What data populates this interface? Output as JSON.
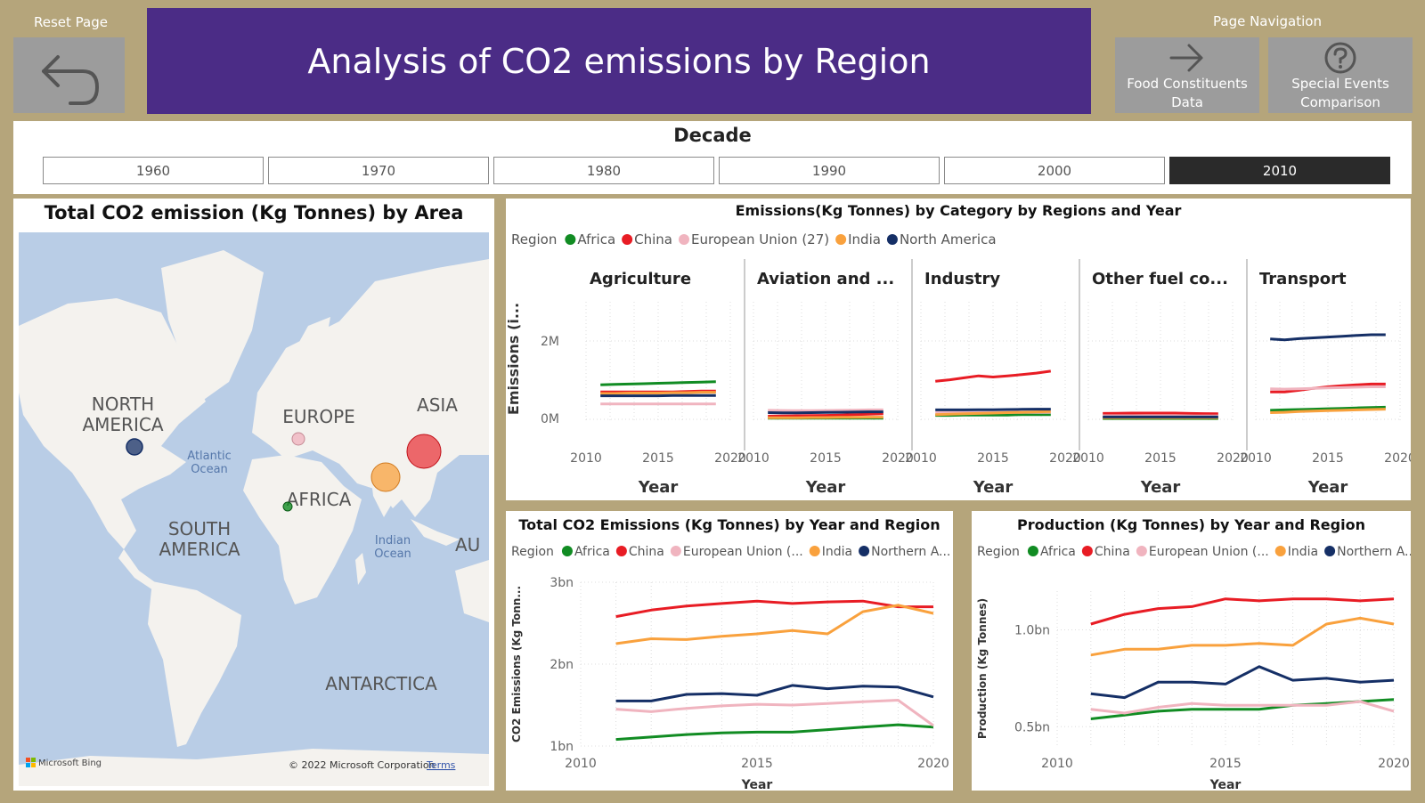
{
  "header": {
    "reset_label": "Reset Page",
    "title": "Analysis of CO2 emissions by Region",
    "nav_label": "Page Navigation",
    "nav_buttons": [
      {
        "line1": "Food Constituents",
        "line2": "Data",
        "icon": "arrow-right-icon"
      },
      {
        "line1": "Special Events",
        "line2": "Comparison",
        "icon": "help-icon"
      }
    ]
  },
  "decade": {
    "title": "Decade",
    "options": [
      "1960",
      "1970",
      "1980",
      "1990",
      "2000",
      "2010"
    ],
    "selected": "2010"
  },
  "map": {
    "title": "Total CO2 emission (Kg Tonnes) by Area",
    "labels": {
      "north_america_1": "NORTH",
      "north_america_2": "AMERICA",
      "europe": "EUROPE",
      "asia": "ASIA",
      "africa": "AFRICA",
      "south_america_1": "SOUTH",
      "south_america_2": "AMERICA",
      "atlantic_1": "Atlantic",
      "atlantic_2": "Ocean",
      "indian_1": "Indian",
      "indian_2": "Ocean",
      "australia_partial": "AU",
      "antarctica": "ANTARCTICA"
    },
    "bing": "Microsoft Bing",
    "copyright": "© 2022 Microsoft Corporation",
    "terms": "Terms",
    "colors": {
      "water": "#b9cde6",
      "land": "#f4f2ee"
    }
  },
  "colors": {
    "Africa": "#118c23",
    "China": "#e81c24",
    "European Union": "#f0b4bf",
    "India": "#f9a13d",
    "North America": "#152f66"
  },
  "category_chart": {
    "title": "Emissions(Kg Tonnes) by Category by Regions and Year",
    "legend_title": "Region",
    "legend": [
      "Africa",
      "China",
      "European Union (27)",
      "India",
      "North America"
    ],
    "y_label": "Emissions (i...",
    "y_ticks": [
      "2M",
      "0M"
    ],
    "x_ticks": [
      "2010",
      "2015",
      "2020"
    ],
    "x_label": "Year",
    "panels": [
      "Agriculture",
      "Aviation and ...",
      "Industry",
      "Other fuel co...",
      "Transport"
    ]
  },
  "total_chart": {
    "title": "Total CO2 Emissions (Kg Tonnes) by Year and Region",
    "legend_title": "Region",
    "legend": [
      "Africa",
      "China",
      "European Union (...",
      "India",
      "Northern A..."
    ],
    "y_label": "CO2 Emissions (Kg Tonn...",
    "y_ticks": [
      "3bn",
      "2bn",
      "1bn"
    ],
    "x_ticks": [
      "2010",
      "2015",
      "2020"
    ],
    "x_label": "Year"
  },
  "production_chart": {
    "title": "Production (Kg Tonnes) by Year and Region",
    "legend_title": "Region",
    "legend": [
      "Africa",
      "China",
      "European Union (...",
      "India",
      "Northern A..."
    ],
    "y_label": "Production (Kg Tonnes)",
    "y_ticks": [
      "1.0bn",
      "0.5bn"
    ],
    "x_ticks": [
      "2010",
      "2015",
      "2020"
    ],
    "x_label": "Year"
  },
  "chart_data": [
    {
      "type": "line",
      "title": "Emissions(Kg Tonnes) by Category by Regions and Year",
      "facets": [
        "Agriculture",
        "Aviation and ...",
        "Industry",
        "Other fuel co...",
        "Transport"
      ],
      "x": [
        2011,
        2012,
        2013,
        2014,
        2015,
        2016,
        2017,
        2018,
        2019
      ],
      "ylim": [
        0,
        3000000
      ],
      "series_by_facet": {
        "Agriculture": [
          {
            "name": "Africa",
            "values": [
              880000,
              890000,
              900000,
              910000,
              920000,
              930000,
              940000,
              950000,
              960000
            ]
          },
          {
            "name": "China",
            "values": [
              700000,
              700000,
              700000,
              700000,
              700000,
              700000,
              710000,
              720000,
              720000
            ]
          },
          {
            "name": "European Union (27)",
            "values": [
              390000,
              390000,
              390000,
              390000,
              390000,
              390000,
              390000,
              390000,
              390000
            ]
          },
          {
            "name": "India",
            "values": [
              660000,
              660000,
              670000,
              670000,
              670000,
              680000,
              680000,
              690000,
              690000
            ]
          },
          {
            "name": "North America",
            "values": [
              600000,
              600000,
              600000,
              600000,
              600000,
              610000,
              610000,
              610000,
              610000
            ]
          }
        ],
        "Aviation and ...": [
          {
            "name": "Africa",
            "values": [
              30000,
              30000,
              30000,
              30000,
              30000,
              30000,
              30000,
              30000,
              30000
            ]
          },
          {
            "name": "China",
            "values": [
              80000,
              85000,
              90000,
              95000,
              100000,
              110000,
              120000,
              130000,
              140000
            ]
          },
          {
            "name": "European Union (27)",
            "values": [
              230000,
              225000,
              220000,
              220000,
              225000,
              230000,
              235000,
              240000,
              240000
            ]
          },
          {
            "name": "India",
            "values": [
              40000,
              40000,
              40000,
              45000,
              45000,
              50000,
              50000,
              55000,
              55000
            ]
          },
          {
            "name": "North America",
            "values": [
              170000,
              165000,
              165000,
              170000,
              175000,
              180000,
              185000,
              190000,
              190000
            ]
          }
        ],
        "Industry": [
          {
            "name": "Africa",
            "values": [
              100000,
              100000,
              110000,
              110000,
              110000,
              110000,
              120000,
              120000,
              120000
            ]
          },
          {
            "name": "China",
            "values": [
              970000,
              1010000,
              1060000,
              1110000,
              1080000,
              1110000,
              1140000,
              1180000,
              1230000
            ]
          },
          {
            "name": "European Union (27)",
            "values": [
              170000,
              170000,
              170000,
              170000,
              170000,
              175000,
              175000,
              175000,
              175000
            ]
          },
          {
            "name": "India",
            "values": [
              120000,
              130000,
              140000,
              150000,
              160000,
              170000,
              180000,
              190000,
              200000
            ]
          },
          {
            "name": "North America",
            "values": [
              240000,
              240000,
              240000,
              245000,
              245000,
              250000,
              255000,
              260000,
              260000
            ]
          }
        ],
        "Other fuel co...": [
          {
            "name": "Africa",
            "values": [
              20000,
              20000,
              20000,
              20000,
              20000,
              20000,
              20000,
              20000,
              20000
            ]
          },
          {
            "name": "China",
            "values": [
              150000,
              155000,
              160000,
              160000,
              160000,
              160000,
              150000,
              145000,
              140000
            ]
          },
          {
            "name": "European Union (27)",
            "values": [
              90000,
              90000,
              90000,
              85000,
              85000,
              85000,
              85000,
              85000,
              85000
            ]
          },
          {
            "name": "India",
            "values": [
              40000,
              40000,
              40000,
              40000,
              40000,
              40000,
              40000,
              40000,
              40000
            ]
          },
          {
            "name": "North America",
            "values": [
              60000,
              60000,
              60000,
              60000,
              60000,
              60000,
              60000,
              60000,
              60000
            ]
          }
        ],
        "Transport": [
          {
            "name": "Africa",
            "values": [
              230000,
              240000,
              250000,
              260000,
              270000,
              280000,
              290000,
              300000,
              310000
            ]
          },
          {
            "name": "China",
            "values": [
              700000,
              700000,
              740000,
              790000,
              830000,
              860000,
              880000,
              900000,
              900000
            ]
          },
          {
            "name": "European Union (27)",
            "values": [
              780000,
              770000,
              780000,
              790000,
              800000,
              810000,
              820000,
              830000,
              830000
            ]
          },
          {
            "name": "India",
            "values": [
              170000,
              180000,
              200000,
              210000,
              220000,
              230000,
              240000,
              250000,
              260000
            ]
          },
          {
            "name": "North America",
            "values": [
              2050000,
              2030000,
              2060000,
              2080000,
              2100000,
              2120000,
              2140000,
              2160000,
              2160000
            ]
          }
        ]
      },
      "ylabel": "Emissions (i...",
      "xlabel": "Year"
    },
    {
      "type": "line",
      "title": "Total CO2 Emissions (Kg Tonnes) by Year and Region",
      "x": [
        2011,
        2012,
        2013,
        2014,
        2015,
        2016,
        2017,
        2018,
        2019,
        2020
      ],
      "ylim": [
        1000000000,
        3000000000
      ],
      "series": [
        {
          "name": "Africa",
          "values": [
            1080000000,
            1110000000,
            1140000000,
            1160000000,
            1170000000,
            1170000000,
            1200000000,
            1230000000,
            1260000000,
            1230000000
          ]
        },
        {
          "name": "China",
          "values": [
            2580000000,
            2660000000,
            2710000000,
            2740000000,
            2770000000,
            2740000000,
            2760000000,
            2770000000,
            2700000000,
            2700000000
          ]
        },
        {
          "name": "European Union (...",
          "values": [
            1450000000,
            1420000000,
            1460000000,
            1490000000,
            1510000000,
            1500000000,
            1520000000,
            1540000000,
            1560000000,
            1250000000
          ]
        },
        {
          "name": "India",
          "values": [
            2250000000,
            2310000000,
            2300000000,
            2340000000,
            2370000000,
            2410000000,
            2370000000,
            2640000000,
            2720000000,
            2620000000
          ]
        },
        {
          "name": "Northern A...",
          "values": [
            1550000000,
            1550000000,
            1630000000,
            1640000000,
            1620000000,
            1740000000,
            1700000000,
            1730000000,
            1720000000,
            1600000000
          ]
        }
      ],
      "ylabel": "CO2 Emissions (Kg Tonn...",
      "xlabel": "Year"
    },
    {
      "type": "line",
      "title": "Production (Kg Tonnes) by Year and Region",
      "x": [
        2011,
        2012,
        2013,
        2014,
        2015,
        2016,
        2017,
        2018,
        2019,
        2020
      ],
      "ylim": [
        0.4,
        1.2
      ],
      "yunit": "bn",
      "series": [
        {
          "name": "Africa",
          "values": [
            0.54,
            0.56,
            0.58,
            0.59,
            0.59,
            0.59,
            0.61,
            0.62,
            0.63,
            0.64
          ]
        },
        {
          "name": "China",
          "values": [
            1.03,
            1.08,
            1.11,
            1.12,
            1.16,
            1.15,
            1.16,
            1.16,
            1.15,
            1.16
          ]
        },
        {
          "name": "European Union (...",
          "values": [
            0.59,
            0.57,
            0.6,
            0.62,
            0.61,
            0.61,
            0.61,
            0.61,
            0.63,
            0.58
          ]
        },
        {
          "name": "India",
          "values": [
            0.87,
            0.9,
            0.9,
            0.92,
            0.92,
            0.93,
            0.92,
            1.03,
            1.06,
            1.03
          ]
        },
        {
          "name": "Northern A...",
          "values": [
            0.67,
            0.65,
            0.73,
            0.73,
            0.72,
            0.81,
            0.74,
            0.75,
            0.73,
            0.74
          ]
        }
      ],
      "ylabel": "Production (Kg Tonnes)",
      "xlabel": "Year"
    }
  ]
}
